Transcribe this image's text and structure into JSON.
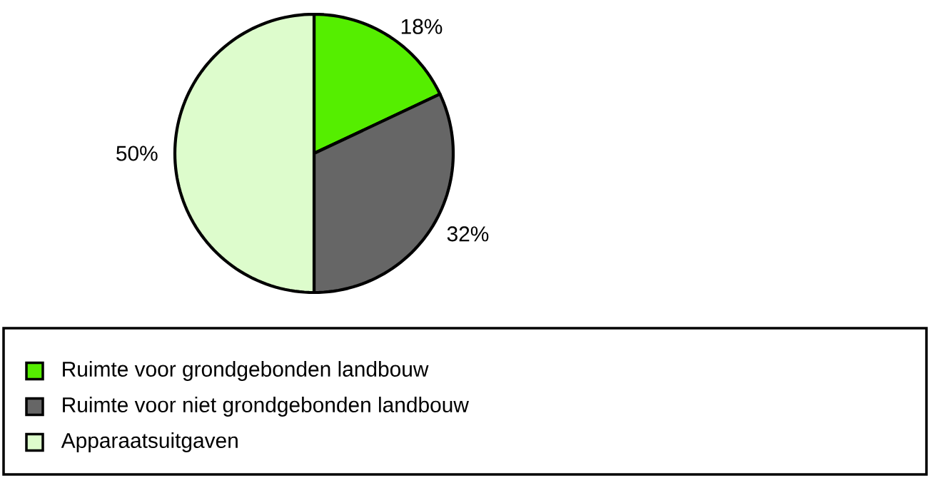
{
  "chart_data": {
    "type": "pie",
    "categories": [
      "Ruimte voor grondgebonden landbouw",
      "Ruimte voor niet grondgebonden landbouw",
      "Apparaatsuitgaven"
    ],
    "values": [
      18,
      32,
      50
    ],
    "colors": [
      "#55ee00",
      "#666666",
      "#ddfccc"
    ],
    "value_labels": [
      "18%",
      "32%",
      "50%"
    ],
    "legend": "bottom"
  }
}
